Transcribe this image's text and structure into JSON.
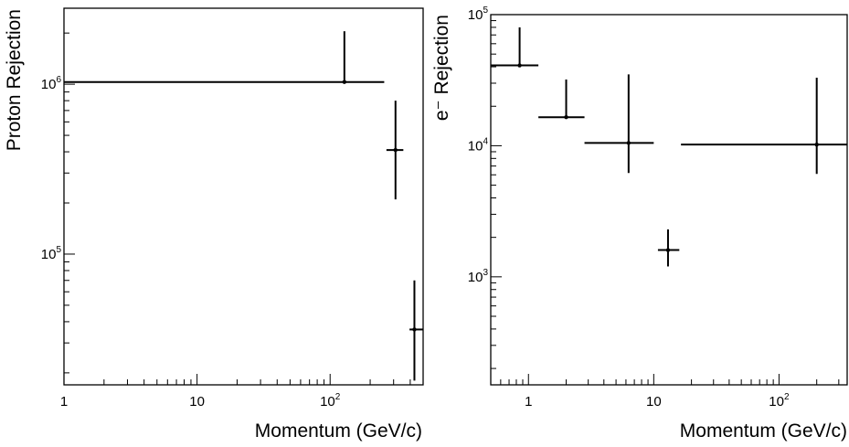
{
  "chart_data": [
    {
      "type": "scatter",
      "panel": "left",
      "xlabel": "Momentum (GeV/c)",
      "ylabel": "Proton Rejection",
      "xscale": "log",
      "yscale": "log",
      "xlim": [
        1,
        500
      ],
      "ylim": [
        17000,
        2800000
      ],
      "grid": false,
      "xticks": [
        {
          "value": 1,
          "base": "1",
          "exp": ""
        },
        {
          "value": 10,
          "base": "10",
          "exp": ""
        },
        {
          "value": 100,
          "base": "10",
          "exp": "2"
        }
      ],
      "yticks": [
        {
          "value": 100000,
          "base": "10",
          "exp": "5"
        },
        {
          "value": 1000000,
          "base": "10",
          "exp": "6"
        }
      ],
      "points": [
        {
          "x": 128,
          "xlow": 1,
          "xhigh": 255,
          "y": 1030000,
          "ylow": 1030000,
          "yhigh": 2050000
        },
        {
          "x": 310,
          "xlow": 265,
          "xhigh": 355,
          "y": 410000,
          "ylow": 210000,
          "yhigh": 800000
        },
        {
          "x": 430,
          "xlow": 395,
          "xhigh": 500,
          "y": 36000,
          "ylow": 18000,
          "yhigh": 70000
        }
      ]
    },
    {
      "type": "scatter",
      "panel": "right",
      "xlabel": "Momentum (GeV/c)",
      "ylabel": "e⁻ Rejection",
      "xscale": "log",
      "yscale": "log",
      "xlim": [
        0.5,
        350
      ],
      "ylim": [
        150,
        100000
      ],
      "grid": false,
      "xticks": [
        {
          "value": 1,
          "base": "1",
          "exp": ""
        },
        {
          "value": 10,
          "base": "10",
          "exp": ""
        },
        {
          "value": 100,
          "base": "10",
          "exp": "2"
        }
      ],
      "yticks": [
        {
          "value": 1000,
          "base": "10",
          "exp": "3"
        },
        {
          "value": 10000,
          "base": "10",
          "exp": "4"
        },
        {
          "value": 100000,
          "base": "10",
          "exp": "5"
        }
      ],
      "points": [
        {
          "x": 0.85,
          "xlow": 0.5,
          "xhigh": 1.2,
          "y": 41000,
          "ylow": 41000,
          "yhigh": 80000
        },
        {
          "x": 2.0,
          "xlow": 1.2,
          "xhigh": 2.8,
          "y": 16500,
          "ylow": 16500,
          "yhigh": 32000
        },
        {
          "x": 6.3,
          "xlow": 2.8,
          "xhigh": 10.0,
          "y": 10500,
          "ylow": 6200,
          "yhigh": 35000
        },
        {
          "x": 13.0,
          "xlow": 10.8,
          "xhigh": 16.0,
          "y": 1600,
          "ylow": 1200,
          "yhigh": 2300
        },
        {
          "x": 200.0,
          "xlow": 16.5,
          "xhigh": 350.0,
          "y": 10200,
          "ylow": 6100,
          "yhigh": 33000
        }
      ]
    }
  ]
}
